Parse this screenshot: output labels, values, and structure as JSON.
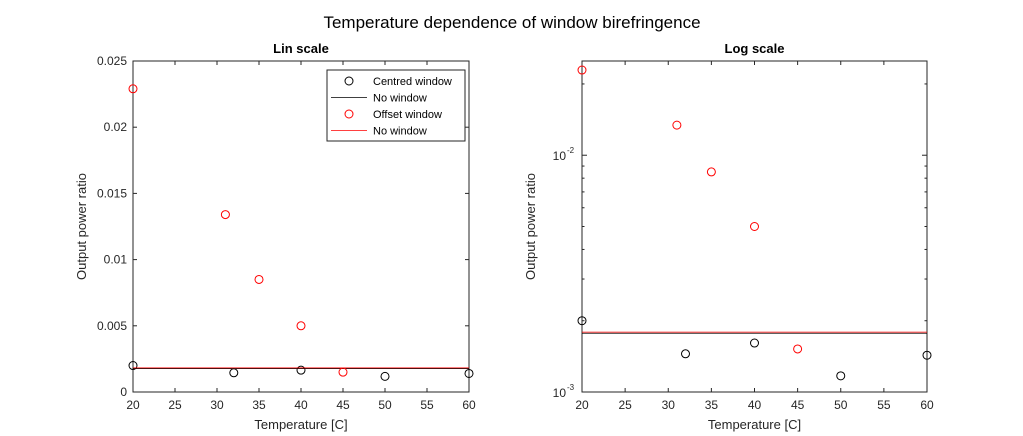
{
  "figure_title": "Temperature dependence of window birefringence",
  "colors": {
    "centred": "#000000",
    "offset": "#ff0000",
    "axes": "#262626"
  },
  "chart_data": [
    {
      "type": "scatter",
      "title": "Lin scale",
      "xlabel": "Temperature [C]",
      "ylabel": "Output power ratio",
      "yscale": "linear",
      "xlim": [
        20,
        60
      ],
      "ylim": [
        0,
        0.025
      ],
      "xticks": [
        20,
        25,
        30,
        35,
        40,
        45,
        50,
        55,
        60
      ],
      "xtick_labels": [
        "20",
        "25",
        "30",
        "35",
        "40",
        "45",
        "50",
        "55",
        "60"
      ],
      "yticks": [
        0,
        0.005,
        0.01,
        0.015,
        0.02,
        0.025
      ],
      "ytick_labels": [
        "0",
        "0.005",
        "0.01",
        "0.015",
        "0.02",
        "0.025"
      ],
      "grid": false,
      "legend": {
        "placement": "top-right"
      },
      "series": [
        {
          "name": "Centred window",
          "kind": "points",
          "color": "#000000",
          "x": [
            20,
            32,
            40,
            50,
            60
          ],
          "y": [
            0.002,
            0.00145,
            0.00165,
            0.00118,
            0.0014
          ]
        },
        {
          "name": "No window",
          "kind": "hline",
          "color": "#000000",
          "y": 0.00177
        },
        {
          "name": "Offset window",
          "kind": "points",
          "color": "#ff0000",
          "x": [
            20,
            31,
            35,
            40,
            45
          ],
          "y": [
            0.0229,
            0.0134,
            0.0085,
            0.005,
            0.0015
          ]
        },
        {
          "name": "No window",
          "kind": "hline",
          "color": "#ff0000",
          "y": 0.00182
        }
      ]
    },
    {
      "type": "scatter",
      "title": "Log scale",
      "xlabel": "Temperature [C]",
      "ylabel": "Output power ratio",
      "yscale": "log",
      "xlim": [
        20,
        60
      ],
      "ylim": [
        0.001,
        0.025
      ],
      "xticks": [
        20,
        25,
        30,
        35,
        40,
        45,
        50,
        55,
        60
      ],
      "xtick_labels": [
        "20",
        "25",
        "30",
        "35",
        "40",
        "45",
        "50",
        "55",
        "60"
      ],
      "yticks": [
        0.001,
        0.01
      ],
      "ytick_labels": [
        {
          "base": "10",
          "exp": "-3"
        },
        {
          "base": "10",
          "exp": "-2"
        }
      ],
      "grid": false,
      "series": [
        {
          "name": "Centred window",
          "kind": "points",
          "color": "#000000",
          "x": [
            20,
            32,
            40,
            50,
            60
          ],
          "y": [
            0.002,
            0.00145,
            0.00161,
            0.00117,
            0.00143
          ]
        },
        {
          "name": "No window",
          "kind": "hline",
          "color": "#000000",
          "y": 0.00177
        },
        {
          "name": "Offset window",
          "kind": "points",
          "color": "#ff0000",
          "x": [
            20,
            31,
            35,
            40,
            45
          ],
          "y": [
            0.0229,
            0.0134,
            0.0085,
            0.005,
            0.00152
          ]
        },
        {
          "name": "No window",
          "kind": "hline",
          "color": "#ff0000",
          "y": 0.00179
        }
      ]
    }
  ]
}
